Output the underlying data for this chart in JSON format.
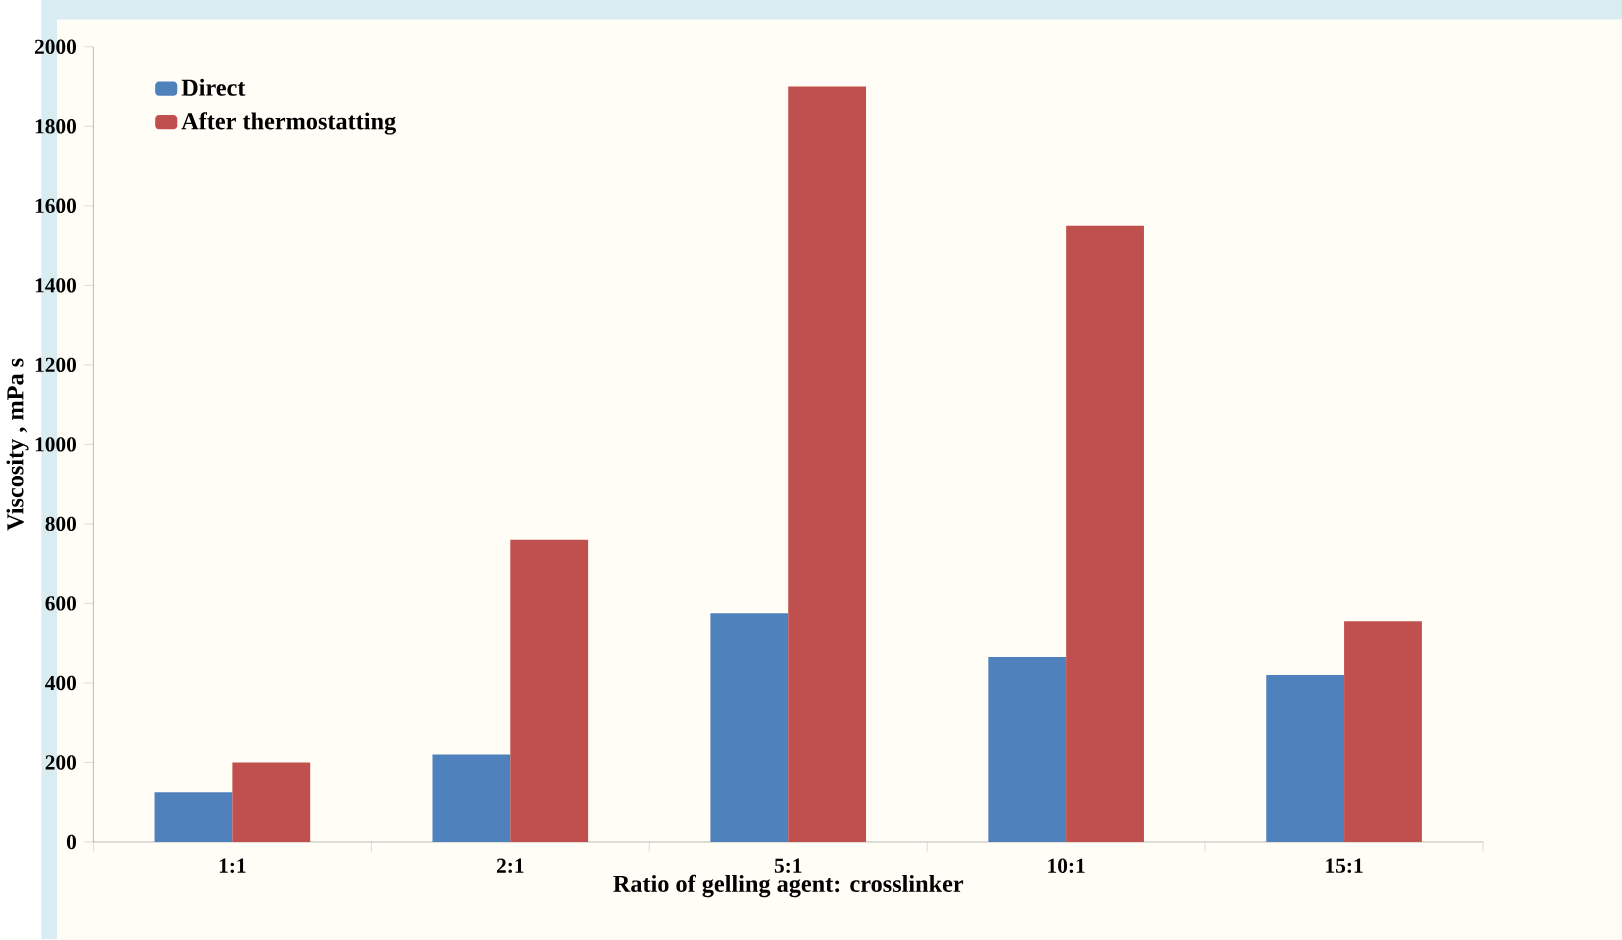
{
  "chart_data": {
    "type": "bar",
    "xlabel": "Ratio of gelling agent: crosslinker",
    "ylabel": "Viscosity , mPa s",
    "categories": [
      "1:1",
      "2:1",
      "5:1",
      "10:1",
      "15:1"
    ],
    "series": [
      {
        "name": "Direct",
        "color": "#4f81bd",
        "values": [
          125,
          220,
          575,
          465,
          420
        ]
      },
      {
        "name": "After thermostatting",
        "color": "#c0504d",
        "values": [
          200,
          760,
          1900,
          1550,
          555
        ]
      }
    ],
    "ylim": [
      0,
      2000
    ],
    "yticks": [
      0,
      200,
      400,
      600,
      800,
      1000,
      1200,
      1400,
      1600,
      1800,
      2000
    ],
    "grid": false,
    "legend": "top left"
  }
}
